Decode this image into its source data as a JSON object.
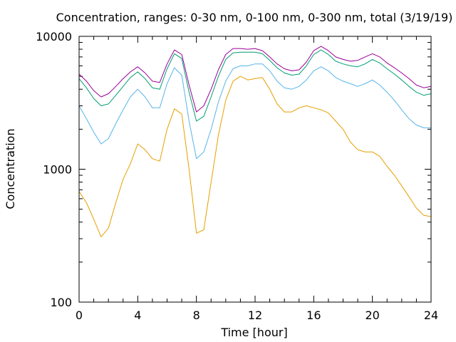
{
  "chart_data": {
    "type": "line",
    "title": "Concentration, ranges: 0-30 nm, 0-100 nm, 0-300 nm, total (3/19/19)",
    "xlabel": "Time [hour]",
    "ylabel": "Concentration",
    "xlim": [
      0,
      24
    ],
    "ylim": [
      100,
      10000
    ],
    "yscale": "log",
    "grid": false,
    "legend": "none",
    "x_ticks": [
      "0",
      "4",
      "8",
      "12",
      "16",
      "20",
      "24"
    ],
    "y_ticks": [
      "100",
      "1000",
      "10000"
    ],
    "series": [
      {
        "color": "#990099",
        "x": [
          0,
          0.5,
          1,
          1.5,
          2,
          2.5,
          3,
          3.5,
          4,
          4.5,
          5,
          5.5,
          6,
          6.5,
          7,
          7.5,
          8,
          8.5,
          9,
          9.5,
          10,
          10.5,
          11,
          11.5,
          12,
          12.5,
          13,
          13.5,
          14,
          14.5,
          15,
          15.5,
          16,
          16.5,
          17,
          17.5,
          18,
          18.5,
          19,
          19.5,
          20,
          20.5,
          21,
          21.5,
          22,
          22.5,
          23,
          23.5,
          24
        ],
        "y": [
          5200,
          4600,
          3900,
          3500,
          3700,
          4200,
          4800,
          5400,
          5900,
          5300,
          4600,
          4500,
          6200,
          7900,
          7300,
          4300,
          2700,
          3000,
          4000,
          5600,
          7300,
          8100,
          8100,
          8000,
          8100,
          7800,
          7000,
          6200,
          5700,
          5500,
          5600,
          6400,
          7800,
          8400,
          7800,
          7000,
          6700,
          6500,
          6600,
          7000,
          7400,
          7000,
          6300,
          5800,
          5300,
          4800,
          4300,
          4100,
          4200
        ]
      },
      {
        "color": "#009e73",
        "x": [
          0,
          0.5,
          1,
          1.5,
          2,
          2.5,
          3,
          3.5,
          4,
          4.5,
          5,
          5.5,
          6,
          6.5,
          7,
          7.5,
          8,
          8.5,
          9,
          9.5,
          10,
          10.5,
          11,
          11.5,
          12,
          12.5,
          13,
          13.5,
          14,
          14.5,
          15,
          15.5,
          16,
          16.5,
          17,
          17.5,
          18,
          18.5,
          19,
          19.5,
          20,
          20.5,
          21,
          21.5,
          22,
          22.5,
          23,
          23.5,
          24
        ],
        "y": [
          4800,
          4100,
          3400,
          3000,
          3100,
          3600,
          4200,
          4900,
          5400,
          4800,
          4100,
          4000,
          5700,
          7400,
          6800,
          3800,
          2300,
          2500,
          3500,
          5000,
          6700,
          7500,
          7600,
          7600,
          7600,
          7400,
          6600,
          5800,
          5300,
          5100,
          5200,
          6000,
          7300,
          7900,
          7300,
          6500,
          6200,
          6000,
          5900,
          6200,
          6700,
          6300,
          5700,
          5200,
          4700,
          4200,
          3800,
          3600,
          3700
        ]
      },
      {
        "color": "#56b4e9",
        "x": [
          0,
          0.5,
          1,
          1.5,
          2,
          2.5,
          3,
          3.5,
          4,
          4.5,
          5,
          5.5,
          6,
          6.5,
          7,
          7.5,
          8,
          8.5,
          9,
          9.5,
          10,
          10.5,
          11,
          11.5,
          12,
          12.5,
          13,
          13.5,
          14,
          14.5,
          15,
          15.5,
          16,
          16.5,
          17,
          17.5,
          18,
          18.5,
          19,
          19.5,
          20,
          20.5,
          21,
          21.5,
          22,
          22.5,
          23,
          23.5,
          24
        ],
        "y": [
          3000,
          2400,
          1900,
          1550,
          1700,
          2200,
          2800,
          3500,
          4000,
          3500,
          2900,
          2900,
          4400,
          5800,
          5100,
          2300,
          1200,
          1350,
          2000,
          3200,
          4600,
          5700,
          6000,
          6000,
          6200,
          6200,
          5500,
          4600,
          4100,
          4000,
          4200,
          4700,
          5500,
          5900,
          5500,
          4900,
          4600,
          4400,
          4200,
          4400,
          4700,
          4300,
          3800,
          3300,
          2800,
          2400,
          2150,
          2050,
          2050
        ]
      },
      {
        "color": "#e69f00",
        "x": [
          0,
          0.5,
          1,
          1.5,
          2,
          2.5,
          3,
          3.5,
          4,
          4.5,
          5,
          5.5,
          6,
          6.5,
          7,
          7.5,
          8,
          8.5,
          9,
          9.5,
          10,
          10.5,
          11,
          11.5,
          12,
          12.5,
          13,
          13.5,
          14,
          14.5,
          15,
          15.5,
          16,
          16.5,
          17,
          17.5,
          18,
          18.5,
          19,
          19.5,
          20,
          20.5,
          21,
          21.5,
          22,
          22.5,
          23,
          23.5,
          24
        ],
        "y": [
          680,
          560,
          420,
          310,
          360,
          560,
          840,
          1100,
          1550,
          1400,
          1200,
          1150,
          2000,
          2850,
          2600,
          1000,
          330,
          350,
          800,
          1800,
          3300,
          4600,
          5000,
          4700,
          4800,
          4900,
          4000,
          3100,
          2700,
          2700,
          2900,
          3000,
          2900,
          2800,
          2650,
          2300,
          2000,
          1600,
          1400,
          1350,
          1350,
          1250,
          1050,
          900,
          750,
          620,
          510,
          450,
          440
        ]
      }
    ]
  }
}
